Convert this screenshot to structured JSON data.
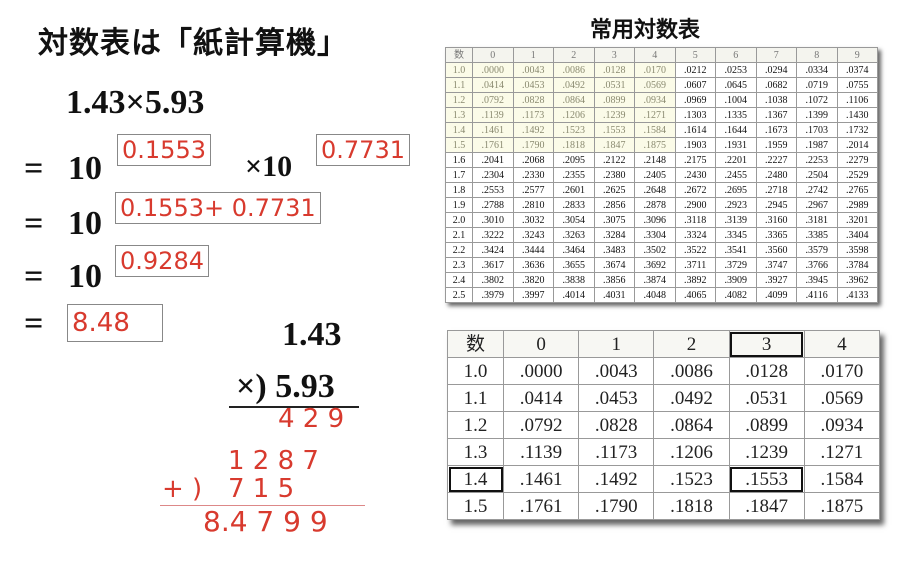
{
  "title": "対数表は「紙計算機」",
  "table_title": "常用対数表",
  "math": {
    "expr": "1.43×5.93",
    "eq": "=",
    "ten": "10",
    "times_ten": "×10",
    "exp1": "0.1553",
    "exp2": "0.7731",
    "exp_sum": "0.1553+ 0.7731",
    "exp_total": "0.9284",
    "result": "8.48"
  },
  "long_mult": {
    "a": "1.43",
    "b": "×) 5.93",
    "p1": "4 2 9",
    "p2": "1 2 8 7",
    "plus": "+ )",
    "p3": "7 1 5",
    "total": "8.4 7 9 9"
  },
  "full_table": {
    "header": [
      "数",
      "0",
      "1",
      "2",
      "3",
      "4",
      "5",
      "6",
      "7",
      "8",
      "9"
    ],
    "rows": [
      [
        "1.0",
        ".0000",
        ".0043",
        ".0086",
        ".0128",
        ".0170",
        ".0212",
        ".0253",
        ".0294",
        ".0334",
        ".0374"
      ],
      [
        "1.1",
        ".0414",
        ".0453",
        ".0492",
        ".0531",
        ".0569",
        ".0607",
        ".0645",
        ".0682",
        ".0719",
        ".0755"
      ],
      [
        "1.2",
        ".0792",
        ".0828",
        ".0864",
        ".0899",
        ".0934",
        ".0969",
        ".1004",
        ".1038",
        ".1072",
        ".1106"
      ],
      [
        "1.3",
        ".1139",
        ".1173",
        ".1206",
        ".1239",
        ".1271",
        ".1303",
        ".1335",
        ".1367",
        ".1399",
        ".1430"
      ],
      [
        "1.4",
        ".1461",
        ".1492",
        ".1523",
        ".1553",
        ".1584",
        ".1614",
        ".1644",
        ".1673",
        ".1703",
        ".1732"
      ],
      [
        "1.5",
        ".1761",
        ".1790",
        ".1818",
        ".1847",
        ".1875",
        ".1903",
        ".1931",
        ".1959",
        ".1987",
        ".2014"
      ],
      [
        "1.6",
        ".2041",
        ".2068",
        ".2095",
        ".2122",
        ".2148",
        ".2175",
        ".2201",
        ".2227",
        ".2253",
        ".2279"
      ],
      [
        "1.7",
        ".2304",
        ".2330",
        ".2355",
        ".2380",
        ".2405",
        ".2430",
        ".2455",
        ".2480",
        ".2504",
        ".2529"
      ],
      [
        "1.8",
        ".2553",
        ".2577",
        ".2601",
        ".2625",
        ".2648",
        ".2672",
        ".2695",
        ".2718",
        ".2742",
        ".2765"
      ],
      [
        "1.9",
        ".2788",
        ".2810",
        ".2833",
        ".2856",
        ".2878",
        ".2900",
        ".2923",
        ".2945",
        ".2967",
        ".2989"
      ],
      [
        "2.0",
        ".3010",
        ".3032",
        ".3054",
        ".3075",
        ".3096",
        ".3118",
        ".3139",
        ".3160",
        ".3181",
        ".3201"
      ],
      [
        "2.1",
        ".3222",
        ".3243",
        ".3263",
        ".3284",
        ".3304",
        ".3324",
        ".3345",
        ".3365",
        ".3385",
        ".3404"
      ],
      [
        "2.2",
        ".3424",
        ".3444",
        ".3464",
        ".3483",
        ".3502",
        ".3522",
        ".3541",
        ".3560",
        ".3579",
        ".3598"
      ],
      [
        "2.3",
        ".3617",
        ".3636",
        ".3655",
        ".3674",
        ".3692",
        ".3711",
        ".3729",
        ".3747",
        ".3766",
        ".3784"
      ],
      [
        "2.4",
        ".3802",
        ".3820",
        ".3838",
        ".3856",
        ".3874",
        ".3892",
        ".3909",
        ".3927",
        ".3945",
        ".3962"
      ],
      [
        "2.5",
        ".3979",
        ".3997",
        ".4014",
        ".4031",
        ".4048",
        ".4065",
        ".4082",
        ".4099",
        ".4116",
        ".4133"
      ]
    ]
  },
  "zoom_table": {
    "header": [
      "数",
      "0",
      "1",
      "2",
      "3",
      "4"
    ],
    "rows": [
      [
        "1.0",
        ".0000",
        ".0043",
        ".0086",
        ".0128",
        ".0170"
      ],
      [
        "1.1",
        ".0414",
        ".0453",
        ".0492",
        ".0531",
        ".0569"
      ],
      [
        "1.2",
        ".0792",
        ".0828",
        ".0864",
        ".0899",
        ".0934"
      ],
      [
        "1.3",
        ".1139",
        ".1173",
        ".1206",
        ".1239",
        ".1271"
      ],
      [
        "1.4",
        ".1461",
        ".1492",
        ".1523",
        ".1553",
        ".1584"
      ],
      [
        "1.5",
        ".1761",
        ".1790",
        ".1818",
        ".1847",
        ".1875"
      ]
    ]
  }
}
